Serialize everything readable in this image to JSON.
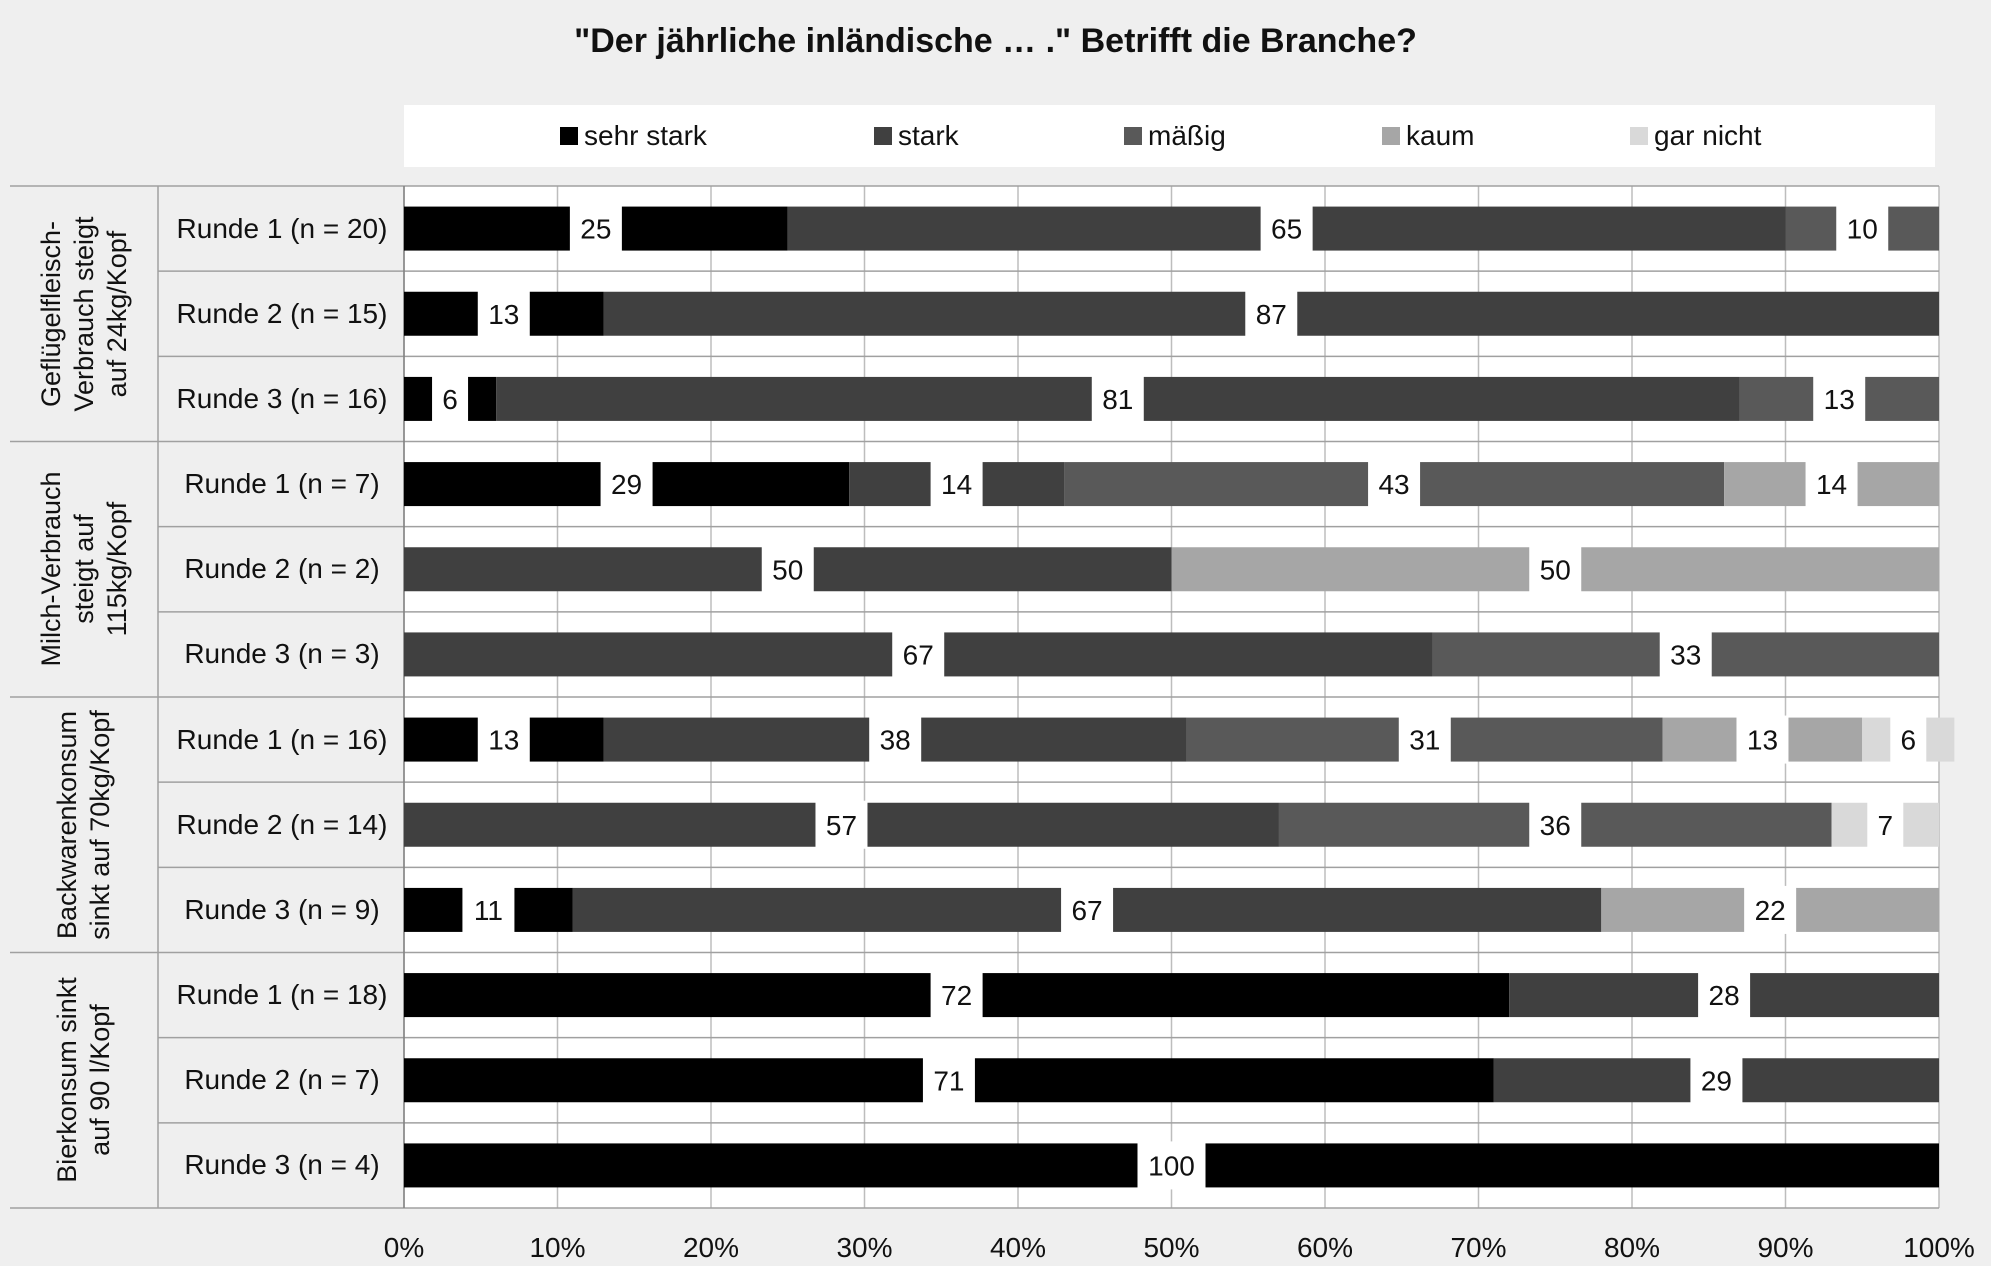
{
  "chart_data": {
    "type": "bar",
    "orientation": "horizontal",
    "stacked": "percent",
    "title": "\"Der jährliche inländische … .\" Betrifft die Branche?",
    "legend_position": "top",
    "grid": true,
    "xlim": [
      0,
      100
    ],
    "x_ticks": [
      "0%",
      "10%",
      "20%",
      "30%",
      "40%",
      "50%",
      "60%",
      "70%",
      "80%",
      "90%",
      "100%"
    ],
    "series": [
      {
        "name": "sehr stark",
        "color": "#000000"
      },
      {
        "name": "stark",
        "color": "#404040"
      },
      {
        "name": "mäßig",
        "color": "#595959"
      },
      {
        "name": "kaum",
        "color": "#a6a6a6"
      },
      {
        "name": "gar nicht",
        "color": "#d9d9d9"
      }
    ],
    "groups": [
      {
        "label": "Geflügelfleisch-Verbrauch steigt auf 24kg/Kopf",
        "label_lines": [
          "Geflügelfleisch-",
          "Verbrauch steigt",
          "auf 24kg/Kopf"
        ],
        "rows": [
          {
            "label": "Runde 1 (n = 20)",
            "values": [
              25,
              65,
              10,
              0,
              0
            ]
          },
          {
            "label": "Runde 2 (n = 15)",
            "values": [
              13,
              87,
              0,
              0,
              0
            ]
          },
          {
            "label": "Runde 3 (n = 16)",
            "values": [
              6,
              81,
              13,
              0,
              0
            ]
          }
        ]
      },
      {
        "label": "Milch-Verbrauch steigt auf 115kg/Kopf",
        "label_lines": [
          "Milch-Verbrauch",
          "steigt auf",
          "115kg/Kopf"
        ],
        "rows": [
          {
            "label": "Runde 1 (n = 7)",
            "values": [
              29,
              14,
              43,
              14,
              0
            ]
          },
          {
            "label": "Runde 2 (n = 2)",
            "values": [
              0,
              50,
              0,
              50,
              0
            ]
          },
          {
            "label": "Runde 3 (n = 3)",
            "values": [
              0,
              67,
              33,
              0,
              0
            ]
          }
        ]
      },
      {
        "label": "Backwarenkonsum sinkt auf 70kg/Kopf",
        "label_lines": [
          "Backwarenkonsum",
          "sinkt auf 70kg/Kopf"
        ],
        "rows": [
          {
            "label": "Runde 1 (n = 16)",
            "values": [
              13,
              38,
              31,
              13,
              6
            ]
          },
          {
            "label": "Runde 2 (n = 14)",
            "values": [
              0,
              57,
              36,
              0,
              7
            ]
          },
          {
            "label": "Runde 3 (n = 9)",
            "values": [
              11,
              67,
              0,
              22,
              0
            ]
          }
        ]
      },
      {
        "label": "Bierkonsum sinkt auf 90 l/Kopf",
        "label_lines": [
          "Bierkonsum sinkt",
          "auf 90 l/Kopf"
        ],
        "rows": [
          {
            "label": "Runde 1 (n = 18)",
            "values": [
              72,
              28,
              0,
              0,
              0
            ]
          },
          {
            "label": "Runde 2 (n = 7)",
            "values": [
              71,
              29,
              0,
              0,
              0
            ]
          },
          {
            "label": "Runde 3 (n = 4)",
            "values": [
              100,
              0,
              0,
              0,
              0
            ]
          }
        ]
      }
    ]
  }
}
